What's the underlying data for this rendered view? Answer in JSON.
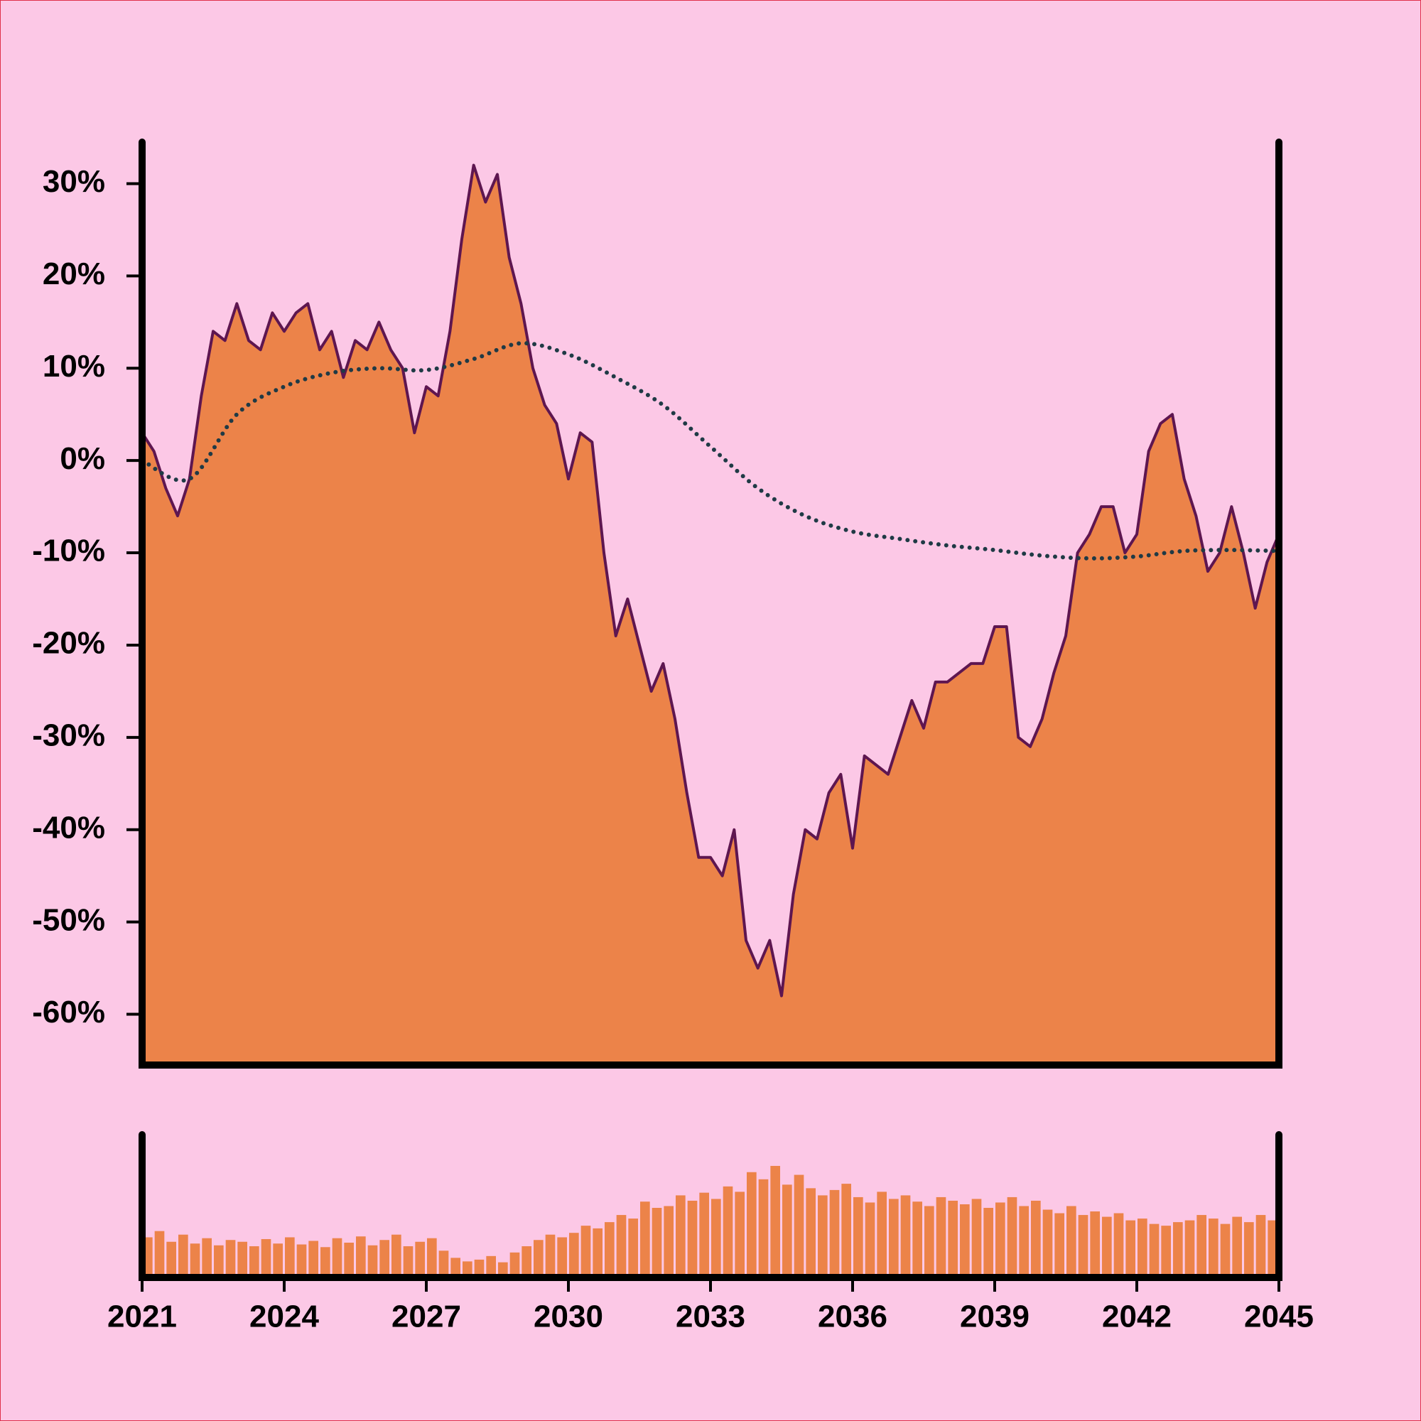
{
  "chart_data": [
    {
      "type": "area",
      "xlim": [
        2021,
        2045
      ],
      "ylim": [
        -65.5,
        34.5
      ],
      "yticks": [
        {
          "value": -60,
          "label": "-60%"
        },
        {
          "value": -50,
          "label": "-50%"
        },
        {
          "value": -40,
          "label": "-40%"
        },
        {
          "value": -30,
          "label": "-30%"
        },
        {
          "value": -20,
          "label": "-20%"
        },
        {
          "value": -10,
          "label": "-10%"
        },
        {
          "value": 0,
          "label": "0%"
        },
        {
          "value": 10,
          "label": "10%"
        },
        {
          "value": 20,
          "label": "20%"
        },
        {
          "value": 30,
          "label": "30%"
        }
      ],
      "series": [
        {
          "type": "area",
          "color": "#ec8349",
          "line_color": "#5e1650",
          "x": [
            2021,
            2021.25,
            2021.5,
            2021.75,
            2022,
            2022.25,
            2022.5,
            2022.75,
            2023,
            2023.25,
            2023.5,
            2023.75,
            2024,
            2024.25,
            2024.5,
            2024.75,
            2025,
            2025.25,
            2025.5,
            2025.75,
            2026,
            2026.25,
            2026.5,
            2026.75,
            2027,
            2027.25,
            2027.5,
            2027.75,
            2028,
            2028.25,
            2028.5,
            2028.75,
            2029,
            2029.25,
            2029.5,
            2029.75,
            2030,
            2030.25,
            2030.5,
            2030.75,
            2031,
            2031.25,
            2031.5,
            2031.75,
            2032,
            2032.25,
            2032.5,
            2032.75,
            2033,
            2033.25,
            2033.5,
            2033.75,
            2034,
            2034.25,
            2034.5,
            2034.75,
            2035,
            2035.25,
            2035.5,
            2035.75,
            2036,
            2036.25,
            2036.5,
            2036.75,
            2037,
            2037.25,
            2037.5,
            2037.75,
            2038,
            2038.25,
            2038.5,
            2038.75,
            2039,
            2039.25,
            2039.5,
            2039.75,
            2040,
            2040.25,
            2040.5,
            2040.75,
            2041,
            2041.25,
            2041.5,
            2041.75,
            2042,
            2042.25,
            2042.5,
            2042.75,
            2043,
            2043.25,
            2043.5,
            2043.75,
            2044,
            2044.25,
            2044.5,
            2044.75,
            2045
          ],
          "values": [
            3,
            1,
            -3,
            -6,
            -2,
            7,
            14,
            13,
            17,
            13,
            12,
            16,
            14,
            16,
            17,
            12,
            14,
            9,
            13,
            12,
            15,
            12,
            10,
            3,
            8,
            7,
            14,
            24,
            32,
            28,
            31,
            22,
            17,
            10,
            6,
            4,
            -2,
            3,
            2,
            -10,
            -19,
            -15,
            -20,
            -25,
            -22,
            -28,
            -36,
            -43,
            -43,
            -45,
            -40,
            -52,
            -55,
            -52,
            -58,
            -47,
            -40,
            -41,
            -36,
            -34,
            -42,
            -32,
            -33,
            -34,
            -30,
            -26,
            -29,
            -24,
            -24,
            -23,
            -22,
            -22,
            -18,
            -18,
            -30,
            -31,
            -28,
            -23,
            -19,
            -10,
            -8,
            -5,
            -5,
            -10,
            -8,
            1,
            4,
            5,
            -2,
            -6,
            -12,
            -10,
            -5,
            -10,
            -16,
            -11,
            -8
          ]
        },
        {
          "type": "line",
          "color": "#1f3a45",
          "x": [
            2021,
            2022,
            2023,
            2024,
            2025,
            2026,
            2027,
            2028,
            2029,
            2030,
            2031,
            2032,
            2033,
            2034,
            2035,
            2036,
            2037,
            2038,
            2039,
            2040,
            2041,
            2042,
            2043,
            2044,
            2045
          ],
          "values": [
            0,
            -2,
            5,
            8,
            9.5,
            10,
            9.8,
            11,
            12.7,
            11.5,
            9,
            6,
            1.5,
            -3,
            -6,
            -7.7,
            -8.5,
            -9.2,
            -9.7,
            -10.3,
            -10.6,
            -10.4,
            -9.8,
            -9.7,
            -9.8
          ]
        }
      ]
    },
    {
      "type": "bar",
      "color": "#ec8349",
      "xlim": [
        2021,
        2045
      ],
      "ylim": [
        0,
        160
      ],
      "xticks": [
        2021,
        2024,
        2027,
        2030,
        2033,
        2036,
        2039,
        2042,
        2045
      ],
      "x": [
        2021,
        2021.25,
        2021.5,
        2021.75,
        2022,
        2022.25,
        2022.5,
        2022.75,
        2023,
        2023.25,
        2023.5,
        2023.75,
        2024,
        2024.25,
        2024.5,
        2024.75,
        2025,
        2025.25,
        2025.5,
        2025.75,
        2026,
        2026.25,
        2026.5,
        2026.75,
        2027,
        2027.25,
        2027.5,
        2027.75,
        2028,
        2028.25,
        2028.5,
        2028.75,
        2029,
        2029.25,
        2029.5,
        2029.75,
        2030,
        2030.25,
        2030.5,
        2030.75,
        2031,
        2031.25,
        2031.5,
        2031.75,
        2032,
        2032.25,
        2032.5,
        2032.75,
        2033,
        2033.25,
        2033.5,
        2033.75,
        2034,
        2034.25,
        2034.5,
        2034.75,
        2035,
        2035.25,
        2035.5,
        2035.75,
        2036,
        2036.25,
        2036.5,
        2036.75,
        2037,
        2037.25,
        2037.5,
        2037.75,
        2038,
        2038.25,
        2038.5,
        2038.75,
        2039,
        2039.25,
        2039.5,
        2039.75,
        2040,
        2040.25,
        2040.5,
        2040.75,
        2041,
        2041.25,
        2041.5,
        2041.75,
        2042,
        2042.25,
        2042.5,
        2042.75,
        2043,
        2043.25,
        2043.5,
        2043.75,
        2044,
        2044.25,
        2044.5,
        2044.75
      ],
      "values": [
        45,
        52,
        40,
        48,
        38,
        44,
        36,
        42,
        40,
        35,
        43,
        38,
        45,
        37,
        41,
        34,
        44,
        39,
        46,
        36,
        42,
        48,
        35,
        40,
        44,
        30,
        22,
        18,
        20,
        24,
        17,
        28,
        35,
        42,
        48,
        45,
        50,
        58,
        55,
        62,
        70,
        66,
        85,
        78,
        80,
        92,
        86,
        95,
        88,
        102,
        96,
        118,
        110,
        125,
        104,
        115,
        100,
        92,
        98,
        105,
        90,
        84,
        96,
        88,
        92,
        85,
        80,
        90,
        86,
        82,
        88,
        78,
        84,
        90,
        80,
        86,
        76,
        72,
        80,
        70,
        74,
        68,
        72,
        64,
        66,
        60,
        58,
        62,
        64,
        70,
        66,
        60,
        68,
        62,
        70,
        64
      ]
    }
  ]
}
